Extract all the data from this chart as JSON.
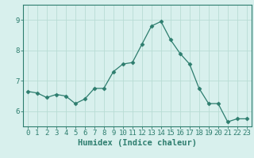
{
  "x": [
    0,
    1,
    2,
    3,
    4,
    5,
    6,
    7,
    8,
    9,
    10,
    11,
    12,
    13,
    14,
    15,
    16,
    17,
    18,
    19,
    20,
    21,
    22,
    23
  ],
  "y": [
    6.65,
    6.6,
    6.45,
    6.55,
    6.5,
    6.25,
    6.4,
    6.75,
    6.75,
    7.3,
    7.55,
    7.6,
    8.2,
    8.8,
    8.95,
    8.35,
    7.9,
    7.55,
    6.75,
    6.25,
    6.25,
    5.65,
    5.75,
    5.75
  ],
  "line_color": "#2d7d6e",
  "marker": "D",
  "bg_color": "#d8f0ed",
  "grid_color": "#b8dcd4",
  "axis_color": "#2d7d6e",
  "xlabel": "Humidex (Indice chaleur)",
  "ylim": [
    5.5,
    9.5
  ],
  "xlim": [
    -0.5,
    23.5
  ],
  "yticks": [
    6,
    7,
    8,
    9
  ],
  "xticks": [
    0,
    1,
    2,
    3,
    4,
    5,
    6,
    7,
    8,
    9,
    10,
    11,
    12,
    13,
    14,
    15,
    16,
    17,
    18,
    19,
    20,
    21,
    22,
    23
  ],
  "tick_fontsize": 6.5,
  "label_fontsize": 7.5
}
